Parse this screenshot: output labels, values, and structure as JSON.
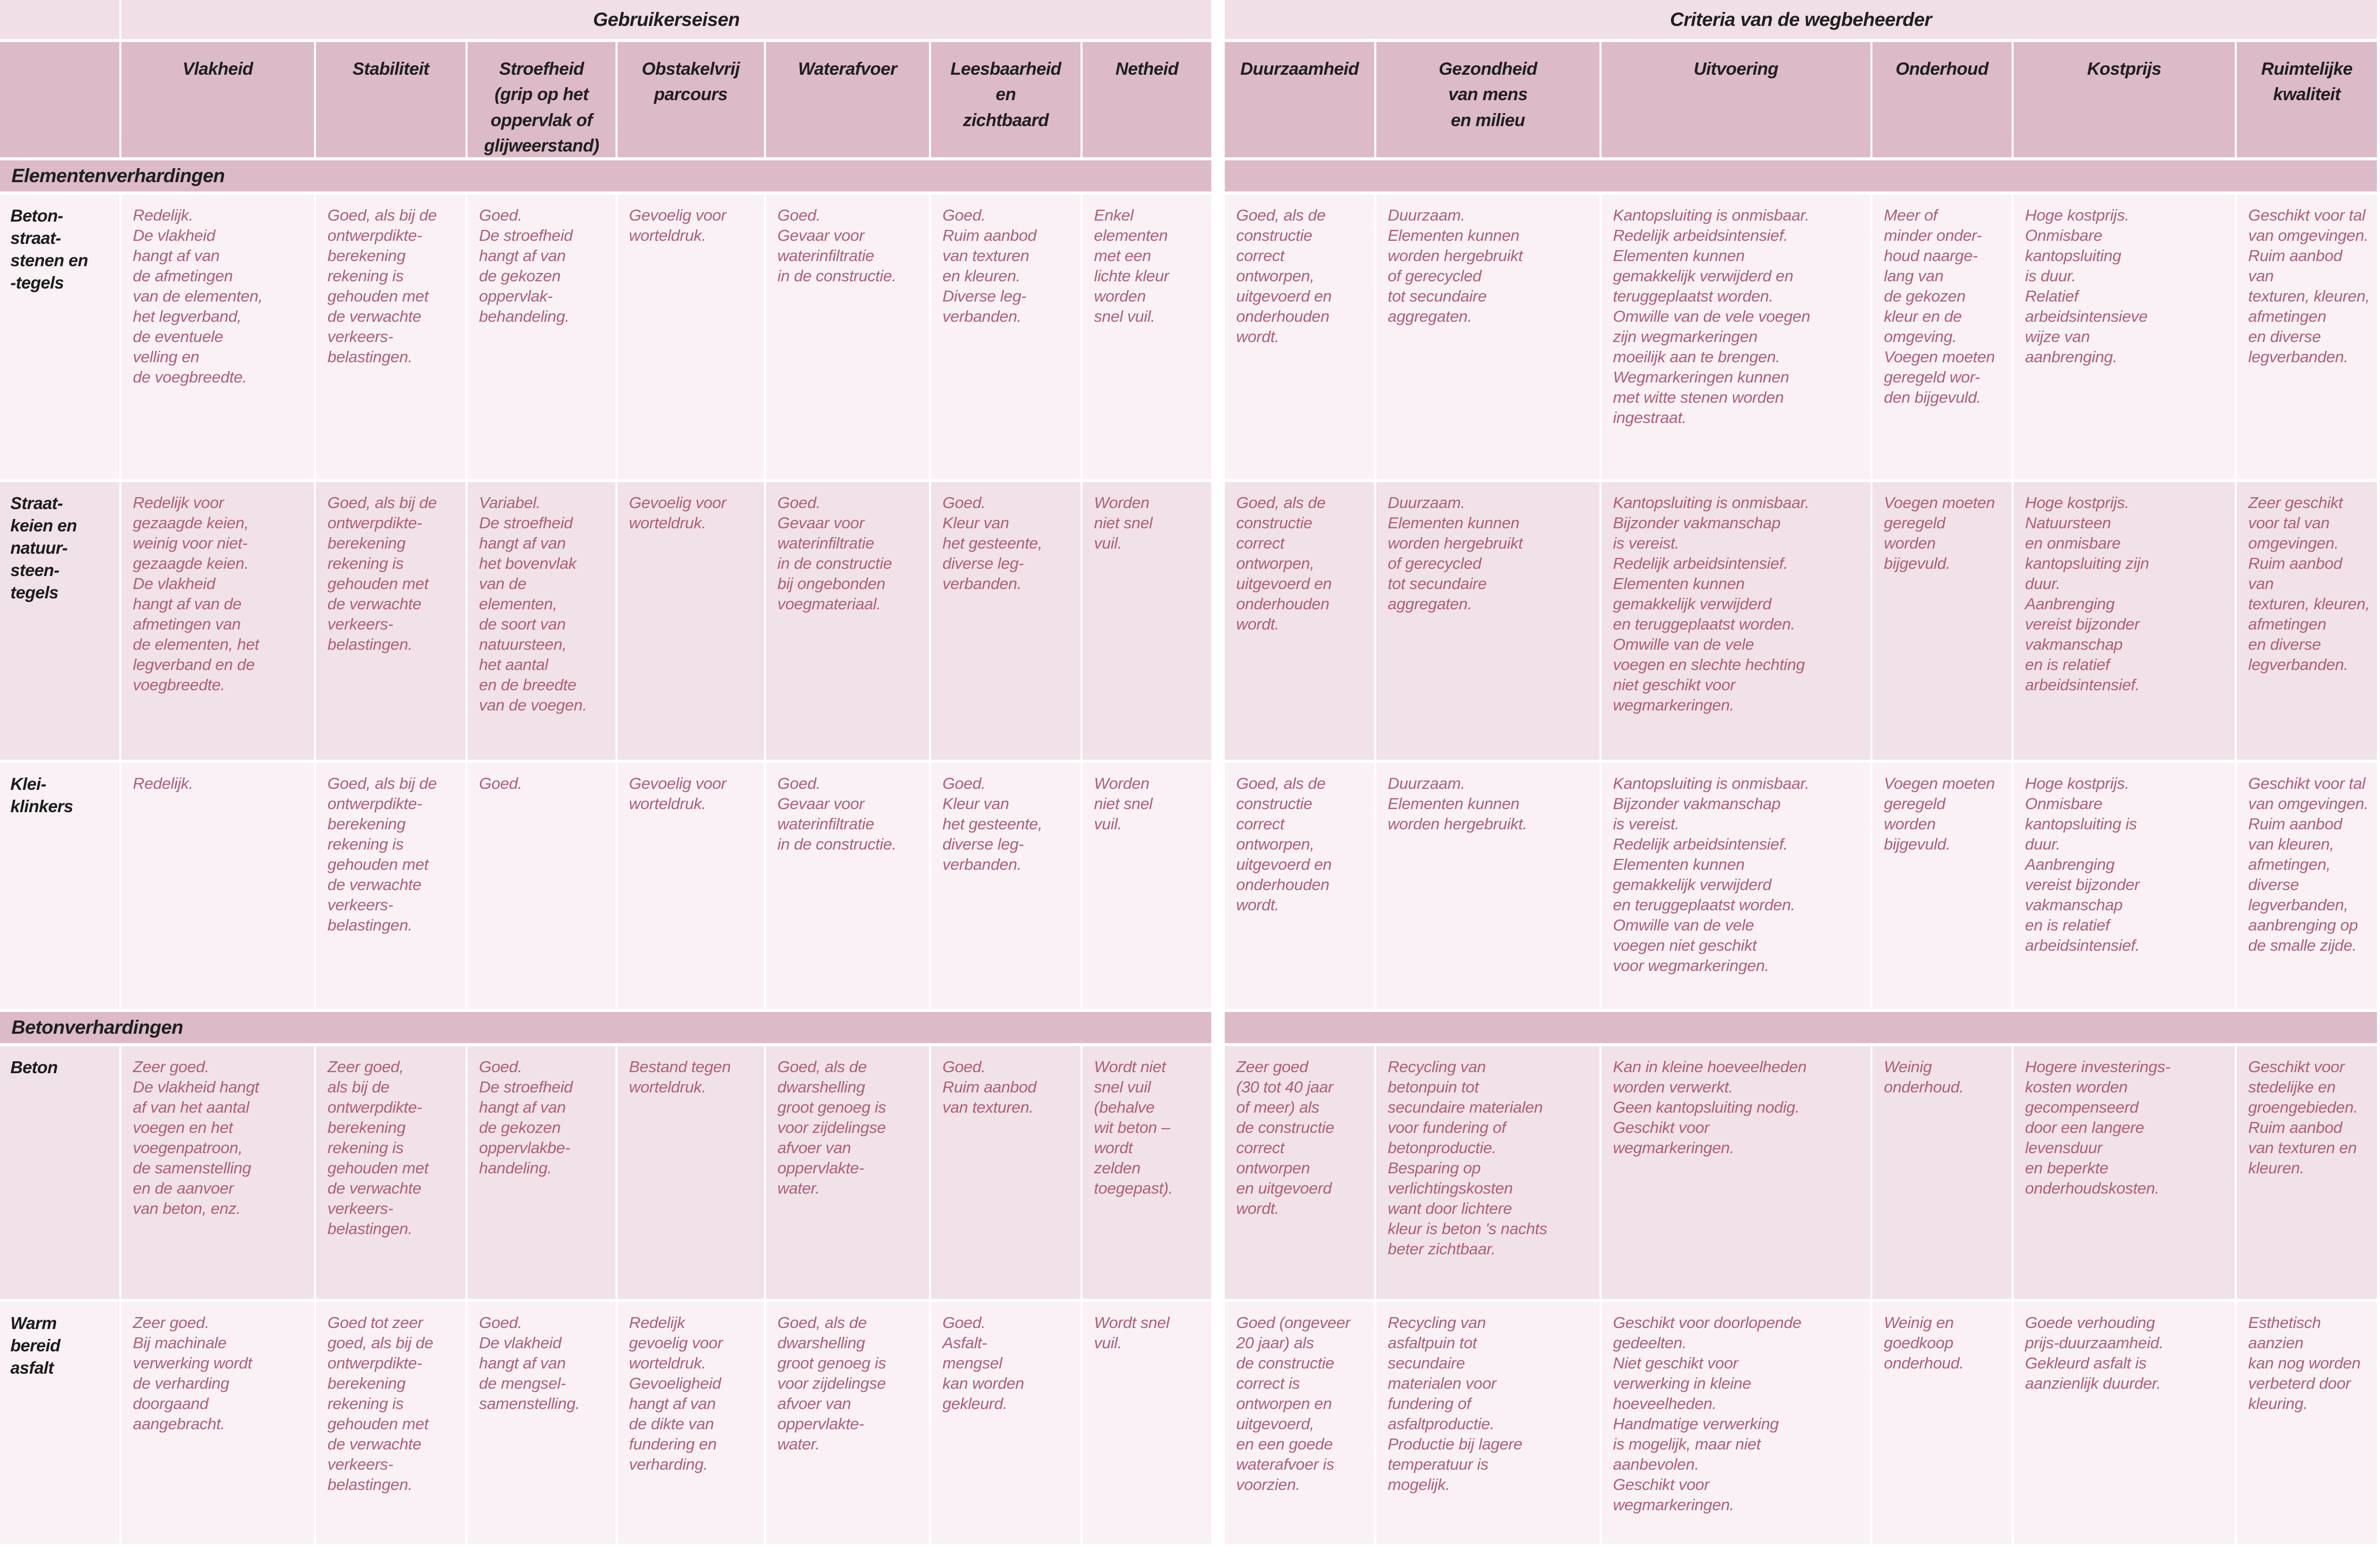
{
  "colors": {
    "group_band": "#f0dfe7",
    "header_band": "#dcbac8",
    "row_light": "#f9f1f5",
    "row_alt": "#f1e1e8",
    "cell_text": "#ad5f77",
    "label_text": "#1c1c1c"
  },
  "table": {
    "group_headers": [
      {
        "label": "Gebruikerseisen"
      },
      {
        "label": "Criteria van de wegbeheerder"
      }
    ],
    "columns": [
      "Vlakheid",
      "Stabiliteit",
      "Stroefheid\n(grip op het\noppervlak of\nglijweerstand)",
      "Obstakelvrij\nparcours",
      "Waterafvoer",
      "Leesbaarheid\nen\nzichtbaard",
      "Netheid",
      "Duurzaamheid",
      "Gezondheid\nvan mens\nen milieu",
      "Uitvoering",
      "Onderhoud",
      "Kostprijs",
      "Ruimtelijke\nkwaliteit"
    ],
    "sections": [
      {
        "title": "Elementenverhardingen",
        "rows": [
          {
            "label": "Beton-\nstraat-\nstenen en\n-tegels",
            "cells": [
              "Redelijk.\nDe vlakheid\nhangt af van\nde afmetingen\nvan de elementen,\nhet legverband,\nde eventuele\nvelling en\nde voegbreedte.",
              "Goed, als bij de\nontwerpdikte-\nberekening\nrekening is\ngehouden met\nde verwachte\nverkeers-\nbelastingen.",
              "Goed.\nDe stroefheid\nhangt af van\nde gekozen\noppervlak-\nbehandeling.",
              "Gevoelig voor\nworteldruk.",
              "Goed.\nGevaar voor\nwaterinfiltratie\nin de constructie.",
              "Goed.\nRuim aanbod\nvan texturen\nen kleuren.\nDiverse leg-\nverbanden.",
              "Enkel\nelementen\nmet een\nlichte kleur\nworden\nsnel vuil.",
              "Goed, als de\nconstructie\ncorrect\nontworpen,\nuitgevoerd en\nonderhouden\nwordt.",
              "Duurzaam.\nElementen kunnen\nworden hergebruikt\nof gerecycled\ntot secundaire\naggregaten.",
              "Kantopsluiting is onmisbaar.\nRedelijk arbeidsintensief.\nElementen kunnen\ngemakkelijk verwijderd en\nteruggeplaatst worden.\nOmwille van de vele voegen\nzijn wegmarkeringen\nmoeilijk aan te brengen.\nWegmarkeringen kunnen\nmet witte stenen worden\ningestraat.",
              "Meer of\nminder onder-\nhoud naarge-\nlang van\nde gekozen\nkleur en de\nomgeving.\nVoegen moeten\ngeregeld wor-\nden bijgevuld.",
              "Hoge kostprijs.\nOnmisbare\nkantopsluiting\nis duur.\nRelatief\narbeidsintensieve\nwijze van\naanbrenging.",
              "Geschikt voor tal\nvan omgevingen.\nRuim aanbod van\ntexturen, kleuren,\nafmetingen\nen diverse\nlegverbanden."
            ]
          },
          {
            "label": "Straat-\nkeien en\nnatuur-\nsteen-\ntegels",
            "cells": [
              "Redelijk voor\ngezaagde keien,\nweinig voor niet-\ngezaagde keien.\nDe vlakheid\nhangt af van de\nafmetingen van\nde elementen, het\nlegverband en de\nvoegbreedte.",
              "Goed, als bij de\nontwerpdikte-\nberekening\nrekening is\ngehouden met\nde verwachte\nverkeers-\nbelastingen.",
              "Variabel.\nDe stroefheid\nhangt af van\nhet bovenvlak\nvan de\nelementen,\nde soort van\nnatuursteen,\nhet aantal\nen de breedte\nvan de voegen.",
              "Gevoelig voor\nworteldruk.",
              "Goed.\nGevaar voor\nwaterinfiltratie\nin de constructie\nbij ongebonden\nvoegmateriaal.",
              "Goed.\nKleur van\nhet gesteente,\ndiverse leg-\nverbanden.",
              "Worden\nniet snel\nvuil.",
              "Goed, als de\nconstructie\ncorrect\nontworpen,\nuitgevoerd en\nonderhouden\nwordt.",
              "Duurzaam.\nElementen kunnen\nworden hergebruikt\nof gerecycled\ntot secundaire\naggregaten.",
              "Kantopsluiting is onmisbaar.\nBijzonder vakmanschap\nis vereist.\nRedelijk arbeidsintensief.\nElementen kunnen\ngemakkelijk verwijderd\nen teruggeplaatst worden.\nOmwille van de vele\nvoegen en slechte hechting\nniet geschikt voor\nwegmarkeringen.",
              "Voegen moeten\ngeregeld\nworden\nbijgevuld.",
              "Hoge kostprijs.\nNatuursteen\nen onmisbare\nkantopsluiting zijn\nduur.\nAanbrenging\nvereist bijzonder\nvakmanschap\nen is relatief\narbeidsintensief.",
              "Zeer geschikt\nvoor tal van\nomgevingen.\nRuim aanbod van\ntexturen, kleuren,\nafmetingen\nen diverse\nlegverbanden."
            ]
          },
          {
            "label": "Klei-\nklinkers",
            "cells": [
              "Redelijk.",
              "Goed, als bij de\nontwerpdikte-\nberekening\nrekening is\ngehouden met\nde verwachte\nverkeers-\nbelastingen.",
              "Goed.",
              "Gevoelig voor\nworteldruk.",
              "Goed.\nGevaar voor\nwaterinfiltratie\nin de constructie.",
              "Goed.\nKleur van\nhet gesteente,\ndiverse leg-\nverbanden.",
              "Worden\nniet snel\nvuil.",
              "Goed, als de\nconstructie\ncorrect\nontworpen,\nuitgevoerd en\nonderhouden\nwordt.",
              "Duurzaam.\nElementen kunnen\nworden hergebruikt.",
              "Kantopsluiting is onmisbaar.\nBijzonder vakmanschap\nis vereist.\nRedelijk arbeidsintensief.\nElementen kunnen\ngemakkelijk verwijderd\nen teruggeplaatst worden.\nOmwille van de vele\nvoegen niet geschikt\nvoor wegmarkeringen.",
              "Voegen moeten\ngeregeld\nworden\nbijgevuld.",
              "Hoge kostprijs.\nOnmisbare\nkantopsluiting is\nduur.\nAanbrenging\nvereist bijzonder\nvakmanschap\nen is relatief\narbeidsintensief.",
              "Geschikt voor tal\nvan omgevingen.\nRuim aanbod\nvan kleuren,\nafmetingen,\ndiverse\nlegverbanden,\naanbrenging op\nde smalle zijde."
            ]
          }
        ]
      },
      {
        "title": "Betonverhardingen",
        "rows": [
          {
            "label": "Beton",
            "cells": [
              "Zeer goed.\nDe vlakheid hangt\naf van het aantal\nvoegen en het\nvoegenpatroon,\nde samenstelling\nen de aanvoer\nvan beton, enz.",
              "Zeer goed,\nals bij de\nontwerpdikte-\nberekening\nrekening is\ngehouden met\nde verwachte\nverkeers-\nbelastingen.",
              "Goed.\nDe stroefheid\nhangt af van\nde gekozen\noppervlakbe-\nhandeling.",
              "Bestand tegen\nworteldruk.",
              "Goed, als de\ndwarshelling\ngroot genoeg is\nvoor zijdelingse\nafvoer van\noppervlakte-\nwater.",
              "Goed.\nRuim aanbod\nvan texturen.",
              "Wordt niet\nsnel vuil\n(behalve\nwit beton –\nwordt\nzelden\ntoegepast).",
              "Zeer goed\n(30 tot 40 jaar\nof meer) als\nde constructie\ncorrect\nontworpen\nen uitgevoerd\nwordt.",
              "Recycling van\nbetonpuin tot\nsecundaire materialen\nvoor fundering of\nbetonproductie.\nBesparing op\nverlichtingskosten\nwant door lichtere\nkleur is beton 's nachts\nbeter zichtbaar.",
              "Kan in kleine hoeveelheden\nworden verwerkt.\nGeen kantopsluiting nodig.\nGeschikt voor\nwegmarkeringen.",
              "Weinig\nonderhoud.",
              "Hogere investerings-\nkosten worden\ngecompenseerd\ndoor een langere\nlevensduur\nen beperkte\nonderhoudskosten.",
              "Geschikt voor\nstedelijke en\ngroengebieden.\nRuim aanbod\nvan texturen en\nkleuren."
            ]
          },
          {
            "label": "Warm\nbereid\nasfalt",
            "cells": [
              "Zeer goed.\nBij machinale\nverwerking wordt\nde verharding\ndoorgaand\naangebracht.",
              "Goed tot zeer\ngoed, als bij de\nontwerpdikte-\nberekening\nrekening is\ngehouden met\nde verwachte\nverkeers-\nbelastingen.",
              "Goed.\nDe vlakheid\nhangt af van\nde mengsel-\nsamenstelling.",
              "Redelijk\ngevoelig voor\nworteldruk.\nGevoeligheid\nhangt af van\nde dikte van\nfundering en\nverharding.",
              "Goed, als de\ndwarshelling\ngroot genoeg is\nvoor zijdelingse\nafvoer van\noppervlakte-\nwater.",
              "Goed.\nAsfalt-\nmengsel\nkan worden\ngekleurd.",
              "Wordt snel\nvuil.",
              "Goed (ongeveer\n20 jaar) als\nde constructie\ncorrect is\nontworpen en\nuitgevoerd,\nen een goede\nwaterafvoer is\nvoorzien.",
              "Recycling van\nasfaltpuin tot\nsecundaire\nmaterialen voor\nfundering of\nasfaltproductie.\nProductie bij lagere\ntemperatuur is\nmogelijk.",
              "Geschikt voor doorlopende\ngedeelten.\nNiet geschikt voor\nverwerking in kleine\nhoeveelheden.\nHandmatige verwerking\nis mogelijk, maar niet\naanbevolen.\nGeschikt voor\nwegmarkeringen.",
              "Weinig en\ngoedkoop\nonderhoud.",
              "Goede verhouding\nprijs-duurzaamheid.\nGekleurd asfalt is\naanzienlijk duurder.",
              "Esthetisch aanzien\nkan nog worden\nverbeterd door\nkleuring."
            ]
          }
        ]
      }
    ]
  }
}
